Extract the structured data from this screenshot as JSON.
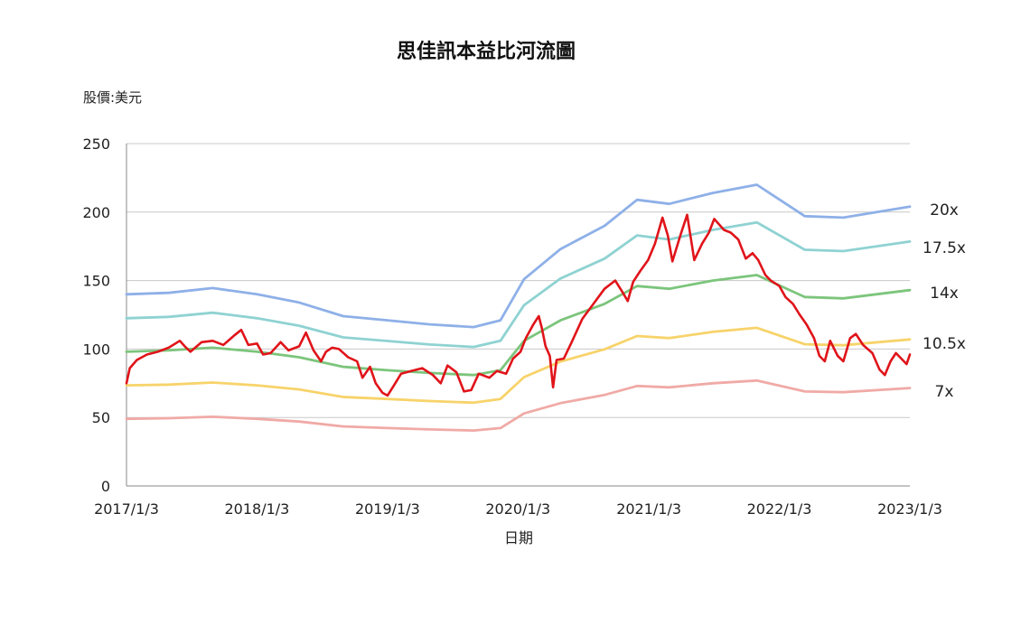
{
  "chart_data": {
    "type": "line",
    "title": "思佳訊本益比河流圖",
    "ylabel": "股價:美元",
    "xlabel": "日期",
    "ylim": [
      0,
      250
    ],
    "yticks": [
      0,
      50,
      100,
      150,
      200,
      250
    ],
    "xlim": [
      "2017-01-03",
      "2023-01-03"
    ],
    "xticks": [
      {
        "date": "2017-01-03",
        "label": "2017/1/3"
      },
      {
        "date": "2018-01-03",
        "label": "2018/1/3"
      },
      {
        "date": "2019-01-03",
        "label": "2019/1/3"
      },
      {
        "date": "2020-01-03",
        "label": "2020/1/3"
      },
      {
        "date": "2021-01-03",
        "label": "2021/1/3"
      },
      {
        "date": "2022-01-03",
        "label": "2022/1/3"
      },
      {
        "date": "2023-01-03",
        "label": "2023/1/3"
      }
    ],
    "grid": "horizontal",
    "legend": "none",
    "series": [
      {
        "name": "20x",
        "color": "#8eb0e8",
        "points": [
          [
            "2017-01-03",
            140
          ],
          [
            "2017-05-01",
            141
          ],
          [
            "2017-09-01",
            144.5
          ],
          [
            "2018-01-03",
            140
          ],
          [
            "2018-05-01",
            134
          ],
          [
            "2018-09-01",
            124
          ],
          [
            "2019-01-03",
            121
          ],
          [
            "2019-05-01",
            118
          ],
          [
            "2019-09-01",
            116
          ],
          [
            "2019-11-15",
            121
          ],
          [
            "2020-01-20",
            151
          ],
          [
            "2020-05-01",
            173
          ],
          [
            "2020-09-01",
            190
          ],
          [
            "2020-12-01",
            209
          ],
          [
            "2021-03-01",
            206
          ],
          [
            "2021-07-01",
            214
          ],
          [
            "2021-11-01",
            220
          ],
          [
            "2022-03-15",
            197
          ],
          [
            "2022-07-01",
            196
          ],
          [
            "2023-01-03",
            204
          ]
        ]
      },
      {
        "name": "17.5x",
        "color": "#8fd2d2",
        "points": [
          [
            "2017-01-03",
            122.5
          ],
          [
            "2017-05-01",
            123.5
          ],
          [
            "2017-09-01",
            126.5
          ],
          [
            "2018-01-03",
            122.5
          ],
          [
            "2018-05-01",
            117
          ],
          [
            "2018-09-01",
            108.5
          ],
          [
            "2019-01-03",
            105.9
          ],
          [
            "2019-05-01",
            103.3
          ],
          [
            "2019-09-01",
            101.5
          ],
          [
            "2019-11-15",
            106
          ],
          [
            "2020-01-20",
            132
          ],
          [
            "2020-05-01",
            151.5
          ],
          [
            "2020-09-01",
            166
          ],
          [
            "2020-12-01",
            183
          ],
          [
            "2021-03-01",
            180
          ],
          [
            "2021-07-01",
            187
          ],
          [
            "2021-11-01",
            192.5
          ],
          [
            "2022-03-15",
            172.5
          ],
          [
            "2022-07-01",
            171.5
          ],
          [
            "2023-01-03",
            178.5
          ]
        ]
      },
      {
        "name": "14x",
        "color": "#7cc57c",
        "points": [
          [
            "2017-01-03",
            98
          ],
          [
            "2017-05-01",
            99
          ],
          [
            "2017-09-01",
            101
          ],
          [
            "2018-01-03",
            98
          ],
          [
            "2018-05-01",
            94
          ],
          [
            "2018-09-01",
            87
          ],
          [
            "2019-01-03",
            84.5
          ],
          [
            "2019-05-01",
            82.5
          ],
          [
            "2019-09-01",
            81
          ],
          [
            "2019-11-15",
            84.5
          ],
          [
            "2020-01-20",
            106
          ],
          [
            "2020-05-01",
            121
          ],
          [
            "2020-09-01",
            133
          ],
          [
            "2020-12-01",
            146
          ],
          [
            "2021-03-01",
            144
          ],
          [
            "2021-07-01",
            150
          ],
          [
            "2021-11-01",
            154
          ],
          [
            "2022-03-15",
            138
          ],
          [
            "2022-07-01",
            137
          ],
          [
            "2023-01-03",
            143
          ]
        ]
      },
      {
        "name": "10.5x",
        "color": "#f7d36a",
        "points": [
          [
            "2017-01-03",
            73.5
          ],
          [
            "2017-05-01",
            74
          ],
          [
            "2017-09-01",
            75.5
          ],
          [
            "2018-01-03",
            73.5
          ],
          [
            "2018-05-01",
            70.5
          ],
          [
            "2018-09-01",
            65
          ],
          [
            "2019-01-03",
            63.5
          ],
          [
            "2019-05-01",
            62
          ],
          [
            "2019-09-01",
            60.8
          ],
          [
            "2019-11-15",
            63.5
          ],
          [
            "2020-01-20",
            79.5
          ],
          [
            "2020-05-01",
            90.8
          ],
          [
            "2020-09-01",
            99.8
          ],
          [
            "2020-12-01",
            109.5
          ],
          [
            "2021-03-01",
            108
          ],
          [
            "2021-07-01",
            112.5
          ],
          [
            "2021-11-01",
            115.5
          ],
          [
            "2022-03-15",
            103.5
          ],
          [
            "2022-07-01",
            102.8
          ],
          [
            "2023-01-03",
            107
          ]
        ]
      },
      {
        "name": "7x",
        "color": "#f0aaa6",
        "points": [
          [
            "2017-01-03",
            49
          ],
          [
            "2017-05-01",
            49.5
          ],
          [
            "2017-09-01",
            50.5
          ],
          [
            "2018-01-03",
            49
          ],
          [
            "2018-05-01",
            47
          ],
          [
            "2018-09-01",
            43.5
          ],
          [
            "2019-01-03",
            42.3
          ],
          [
            "2019-05-01",
            41.3
          ],
          [
            "2019-09-01",
            40.5
          ],
          [
            "2019-11-15",
            42.3
          ],
          [
            "2020-01-20",
            53
          ],
          [
            "2020-05-01",
            60.5
          ],
          [
            "2020-09-01",
            66.5
          ],
          [
            "2020-12-01",
            73
          ],
          [
            "2021-03-01",
            72
          ],
          [
            "2021-07-01",
            75
          ],
          [
            "2021-11-01",
            77
          ],
          [
            "2022-03-15",
            69
          ],
          [
            "2022-07-01",
            68.5
          ],
          [
            "2023-01-03",
            71.5
          ]
        ]
      },
      {
        "name": "",
        "color": "#e0141a",
        "points": [
          [
            "2017-01-03",
            75
          ],
          [
            "2017-01-12",
            86
          ],
          [
            "2017-02-01",
            92
          ],
          [
            "2017-03-01",
            96
          ],
          [
            "2017-04-01",
            98
          ],
          [
            "2017-05-01",
            101
          ],
          [
            "2017-06-01",
            106
          ],
          [
            "2017-06-15",
            102
          ],
          [
            "2017-07-01",
            98
          ],
          [
            "2017-08-01",
            105
          ],
          [
            "2017-09-01",
            106
          ],
          [
            "2017-10-01",
            103
          ],
          [
            "2017-11-01",
            110
          ],
          [
            "2017-11-20",
            114
          ],
          [
            "2017-12-10",
            103
          ],
          [
            "2018-01-03",
            104
          ],
          [
            "2018-01-20",
            96
          ],
          [
            "2018-02-10",
            97
          ],
          [
            "2018-03-10",
            105
          ],
          [
            "2018-04-01",
            99
          ],
          [
            "2018-05-01",
            102
          ],
          [
            "2018-05-20",
            112
          ],
          [
            "2018-06-10",
            99
          ],
          [
            "2018-07-01",
            91
          ],
          [
            "2018-07-15",
            98
          ],
          [
            "2018-08-01",
            101
          ],
          [
            "2018-08-20",
            100
          ],
          [
            "2018-09-15",
            94
          ],
          [
            "2018-10-10",
            91
          ],
          [
            "2018-10-25",
            79
          ],
          [
            "2018-11-15",
            87
          ],
          [
            "2018-12-01",
            75
          ],
          [
            "2018-12-20",
            68
          ],
          [
            "2019-01-03",
            66
          ],
          [
            "2019-01-20",
            73
          ],
          [
            "2019-02-10",
            82
          ],
          [
            "2019-03-10",
            84
          ],
          [
            "2019-04-10",
            86
          ],
          [
            "2019-05-10",
            81
          ],
          [
            "2019-06-01",
            75
          ],
          [
            "2019-06-20",
            88
          ],
          [
            "2019-07-15",
            83
          ],
          [
            "2019-08-05",
            69
          ],
          [
            "2019-08-25",
            70
          ],
          [
            "2019-09-15",
            82
          ],
          [
            "2019-10-15",
            79
          ],
          [
            "2019-11-05",
            84
          ],
          [
            "2019-12-01",
            82
          ],
          [
            "2019-12-20",
            93
          ],
          [
            "2020-01-10",
            98
          ],
          [
            "2020-01-25",
            108
          ],
          [
            "2020-02-15",
            118
          ],
          [
            "2020-03-01",
            124
          ],
          [
            "2020-03-10",
            115
          ],
          [
            "2020-03-20",
            102
          ],
          [
            "2020-04-01",
            95
          ],
          [
            "2020-04-10",
            72
          ],
          [
            "2020-04-20",
            92
          ],
          [
            "2020-05-10",
            93
          ],
          [
            "2020-06-01",
            105
          ],
          [
            "2020-07-01",
            122
          ],
          [
            "2020-08-01",
            133
          ],
          [
            "2020-09-01",
            144
          ],
          [
            "2020-10-01",
            150
          ],
          [
            "2020-10-20",
            142
          ],
          [
            "2020-11-05",
            135
          ],
          [
            "2020-11-20",
            149
          ],
          [
            "2020-12-10",
            157
          ],
          [
            "2021-01-01",
            165
          ],
          [
            "2021-01-20",
            177
          ],
          [
            "2021-02-10",
            196
          ],
          [
            "2021-02-25",
            183
          ],
          [
            "2021-03-10",
            164
          ],
          [
            "2021-04-01",
            183
          ],
          [
            "2021-04-20",
            198
          ],
          [
            "2021-05-10",
            165
          ],
          [
            "2021-06-01",
            177
          ],
          [
            "2021-06-20",
            185
          ],
          [
            "2021-07-05",
            195
          ],
          [
            "2021-07-15",
            192
          ],
          [
            "2021-08-01",
            187
          ],
          [
            "2021-08-20",
            185
          ],
          [
            "2021-09-10",
            180
          ],
          [
            "2021-10-01",
            166
          ],
          [
            "2021-10-20",
            170
          ],
          [
            "2021-11-05",
            165
          ],
          [
            "2021-11-25",
            154
          ],
          [
            "2021-12-10",
            150
          ],
          [
            "2022-01-03",
            146
          ],
          [
            "2022-01-20",
            138
          ],
          [
            "2022-02-10",
            133
          ],
          [
            "2022-03-01",
            125
          ],
          [
            "2022-03-20",
            118
          ],
          [
            "2022-04-10",
            108
          ],
          [
            "2022-04-25",
            95
          ],
          [
            "2022-05-10",
            91
          ],
          [
            "2022-05-25",
            106
          ],
          [
            "2022-06-15",
            95
          ],
          [
            "2022-07-01",
            91
          ],
          [
            "2022-07-20",
            108
          ],
          [
            "2022-08-05",
            111
          ],
          [
            "2022-08-25",
            103
          ],
          [
            "2022-09-20",
            97
          ],
          [
            "2022-10-10",
            85
          ],
          [
            "2022-10-25",
            81
          ],
          [
            "2022-11-10",
            91
          ],
          [
            "2022-11-25",
            97
          ],
          [
            "2022-12-10",
            93
          ],
          [
            "2022-12-25",
            89
          ],
          [
            "2023-01-03",
            96
          ]
        ]
      }
    ]
  }
}
